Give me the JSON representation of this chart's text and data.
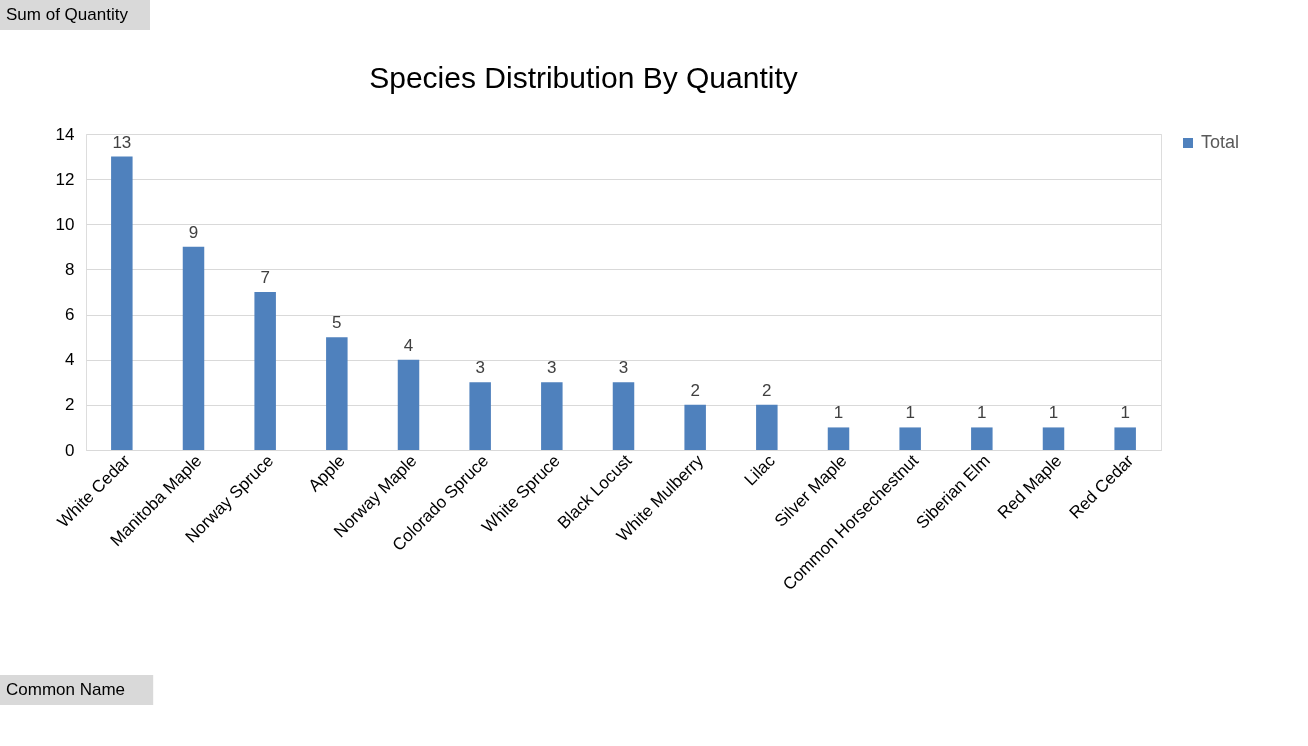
{
  "chart_data": {
    "type": "bar",
    "title": "Species Distribution By Quantity",
    "categories": [
      "White Cedar",
      "Manitoba Maple",
      "Norway Spruce",
      "Apple",
      "Norway Maple",
      "Colorado Spruce",
      "White Spruce",
      "Black Locust",
      "White Mulberry",
      "Lilac",
      "Silver Maple",
      "Common Horsechestnut",
      "Siberian Elm",
      "Red Maple",
      "Red Cedar"
    ],
    "series": [
      {
        "name": "Total",
        "color": "#4f81bd",
        "values": [
          13,
          9,
          7,
          5,
          4,
          3,
          3,
          3,
          2,
          2,
          1,
          1,
          1,
          1,
          1
        ]
      }
    ],
    "ylim": [
      0,
      14
    ],
    "yticks": [
      0,
      2,
      4,
      6,
      8,
      10,
      12,
      14
    ],
    "grid": "y",
    "legend": "right",
    "data_labels": true,
    "annotations": [
      "Sum of Quantity",
      "Common Name"
    ]
  }
}
